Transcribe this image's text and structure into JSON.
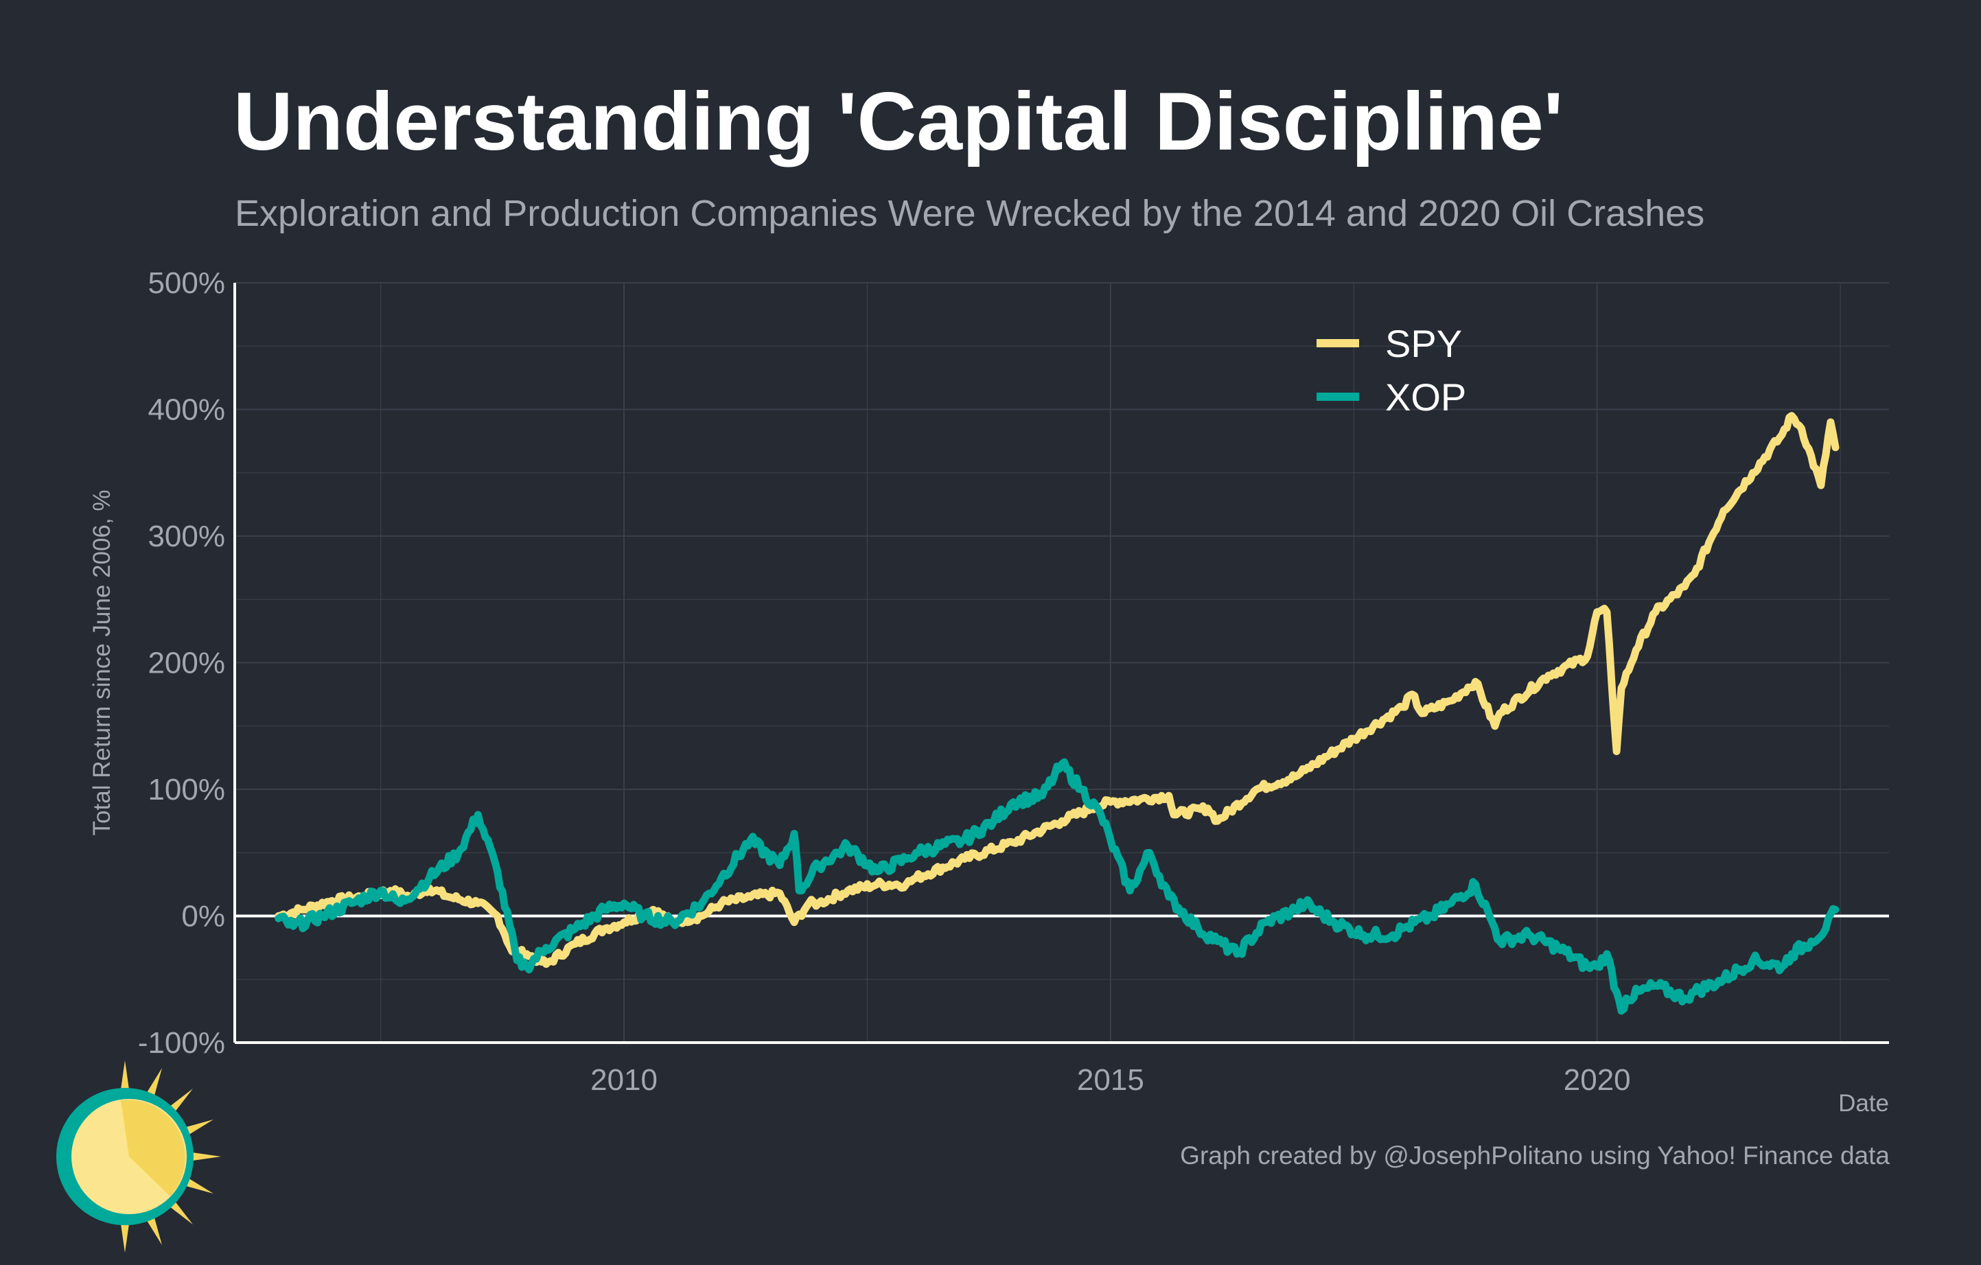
{
  "header": {
    "title": "Understanding 'Capital Discipline'",
    "subtitle": "Exploration and Production Companies Were Wrecked by the 2014 and 2020 Oil Crashes"
  },
  "footer": {
    "caption": "Graph created by @JosephPolitano using Yahoo! Finance data"
  },
  "logo": {
    "icon": "sun-logo-icon"
  },
  "colors": {
    "background": "#252a33",
    "grid": "#3a3f48",
    "axis": "#ffffff",
    "zero_line": "#ffffff",
    "spy": "#f9e07f",
    "xop": "#00a99a",
    "muted_text": "#a3a7ae"
  },
  "chart_data": {
    "type": "line",
    "title": "Understanding 'Capital Discipline'",
    "subtitle": "Exploration and Production Companies Were Wrecked by the 2014 and 2020 Oil Crashes",
    "xlabel": "Date",
    "ylabel": "Total Return since June 2006, %",
    "xlim": [
      2006.0,
      2023.0
    ],
    "ylim": [
      -100,
      500
    ],
    "x_ticks": [
      2010,
      2015,
      2020
    ],
    "x_tick_labels": [
      "2010",
      "2015",
      "2020"
    ],
    "y_ticks": [
      -100,
      0,
      100,
      200,
      300,
      400,
      500
    ],
    "y_tick_labels": [
      "-100%",
      "0%",
      "100%",
      "200%",
      "300%",
      "400%",
      "500%"
    ],
    "grid": true,
    "legend_position": "top-right",
    "series": [
      {
        "name": "SPY",
        "color": "#f9e07f",
        "x": [
          2006.45,
          2006.7,
          2007.0,
          2007.3,
          2007.6,
          2007.8,
          2008.0,
          2008.2,
          2008.5,
          2008.7,
          2008.85,
          2009.0,
          2009.2,
          2009.5,
          2009.8,
          2010.0,
          2010.3,
          2010.5,
          2010.8,
          2011.0,
          2011.3,
          2011.6,
          2011.75,
          2011.9,
          2012.0,
          2012.3,
          2012.6,
          2012.9,
          2013.0,
          2013.5,
          2014.0,
          2014.5,
          2014.8,
          2015.0,
          2015.3,
          2015.6,
          2015.65,
          2016.0,
          2016.1,
          2016.5,
          2016.9,
          2017.0,
          2017.5,
          2018.0,
          2018.1,
          2018.2,
          2018.5,
          2018.75,
          2018.95,
          2019.0,
          2019.5,
          2019.9,
          2020.0,
          2020.1,
          2020.2,
          2020.25,
          2020.4,
          2020.6,
          2020.9,
          2021.0,
          2021.3,
          2021.6,
          2021.9,
          2022.0,
          2022.1,
          2022.3,
          2022.4,
          2022.45
        ],
        "values": [
          0,
          5,
          12,
          15,
          20,
          15,
          22,
          15,
          10,
          0,
          -28,
          -30,
          -38,
          -22,
          -10,
          -5,
          5,
          -5,
          0,
          10,
          15,
          18,
          -5,
          10,
          10,
          20,
          25,
          25,
          30,
          45,
          58,
          75,
          85,
          90,
          92,
          95,
          80,
          85,
          75,
          100,
          110,
          115,
          140,
          165,
          175,
          160,
          170,
          185,
          150,
          160,
          190,
          205,
          240,
          240,
          130,
          180,
          210,
          240,
          260,
          270,
          320,
          350,
          380,
          395,
          385,
          340,
          390,
          370
        ]
      },
      {
        "name": "XOP",
        "color": "#00a99a",
        "x": [
          2006.45,
          2006.6,
          2006.9,
          2007.2,
          2007.5,
          2007.7,
          2008.0,
          2008.3,
          2008.5,
          2008.7,
          2008.9,
          2009.0,
          2009.2,
          2009.5,
          2009.8,
          2010.0,
          2010.2,
          2010.5,
          2010.8,
          2011.0,
          2011.3,
          2011.6,
          2011.75,
          2011.8,
          2012.0,
          2012.3,
          2012.6,
          2012.9,
          2013.0,
          2013.5,
          2013.8,
          2014.0,
          2014.3,
          2014.5,
          2014.7,
          2014.9,
          2015.0,
          2015.2,
          2015.4,
          2015.6,
          2015.9,
          2016.1,
          2016.3,
          2016.6,
          2016.9,
          2017.0,
          2017.3,
          2017.6,
          2017.9,
          2018.0,
          2018.3,
          2018.5,
          2018.75,
          2018.95,
          2019.0,
          2019.3,
          2019.6,
          2019.9,
          2020.0,
          2020.1,
          2020.2,
          2020.25,
          2020.3,
          2020.6,
          2020.9,
          2021.0,
          2021.3,
          2021.6,
          2021.9,
          2022.0,
          2022.2,
          2022.35,
          2022.45
        ],
        "values": [
          -2,
          -8,
          0,
          10,
          20,
          10,
          30,
          50,
          80,
          35,
          -35,
          -40,
          -25,
          -10,
          5,
          10,
          0,
          -5,
          10,
          30,
          60,
          40,
          65,
          20,
          40,
          55,
          35,
          45,
          50,
          60,
          75,
          90,
          95,
          120,
          100,
          80,
          60,
          20,
          50,
          15,
          -10,
          -20,
          -30,
          -5,
          5,
          10,
          -5,
          -15,
          -15,
          -10,
          0,
          10,
          25,
          -10,
          -20,
          -15,
          -25,
          -40,
          -40,
          -30,
          -60,
          -75,
          -65,
          -55,
          -65,
          -60,
          -50,
          -35,
          -40,
          -30,
          -20,
          -10,
          5
        ]
      }
    ]
  }
}
